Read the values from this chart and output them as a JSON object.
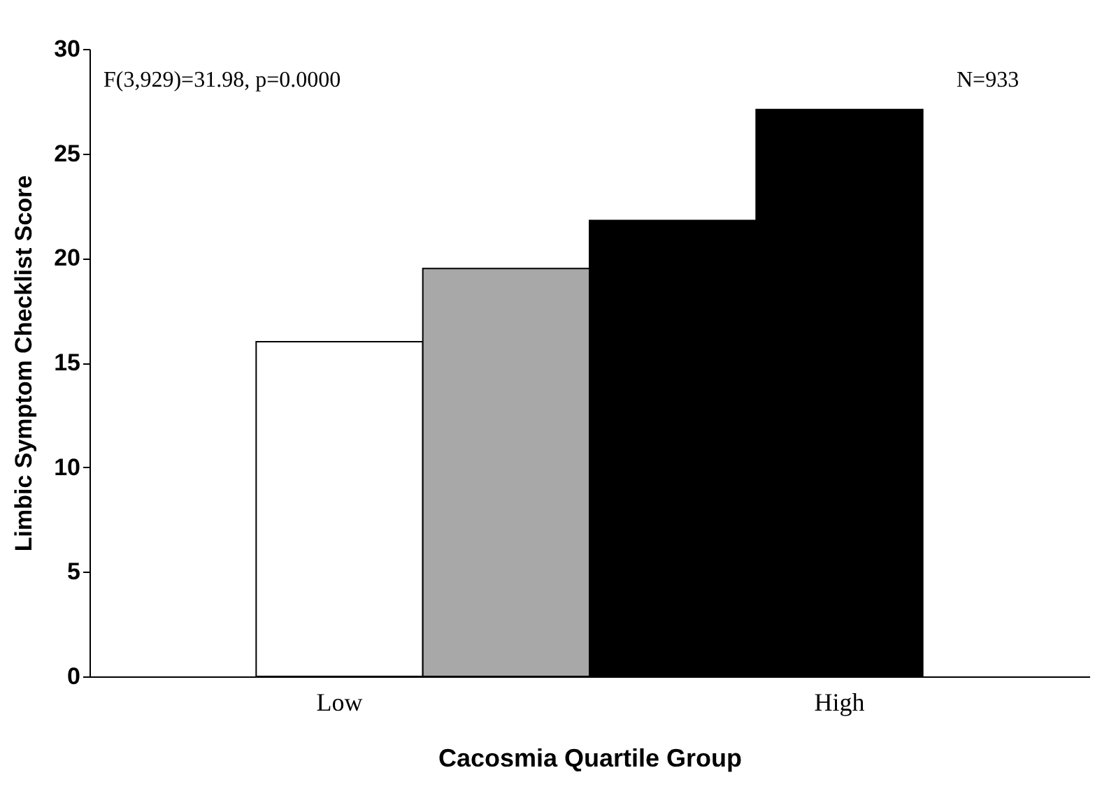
{
  "chart_data": {
    "type": "bar",
    "xlabel": "Cacosmia Quartile Group",
    "ylabel": "Limbic Symptom Checklist Score",
    "categories": [
      "Low",
      null,
      null,
      "High"
    ],
    "values": [
      16.0,
      19.5,
      21.8,
      27.1
    ],
    "colors": [
      "#ffffff",
      "#a8a8a8",
      "#000000",
      "#000000"
    ],
    "ylim": [
      0,
      30
    ],
    "yticks": [
      0,
      5,
      10,
      15,
      20,
      25,
      30
    ],
    "annotations": [
      "F(3,929)=31.98, p=0.0000",
      "N=933"
    ]
  }
}
